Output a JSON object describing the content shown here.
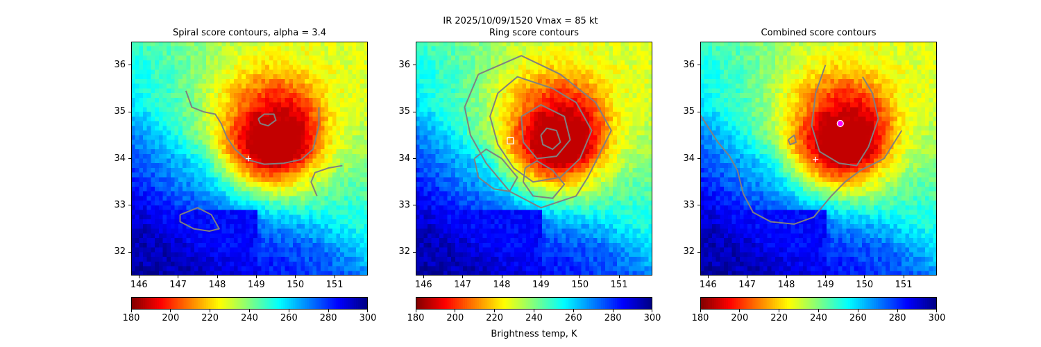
{
  "suptitle": "IR  2025/10/09/1520    Vmax = 85 kt",
  "colorbar_xlabel": "Brightness temp, K",
  "chart_data": [
    {
      "type": "heatmap",
      "title": "Spiral score contours, alpha =  3.4",
      "xlim": [
        145.8,
        151.85
      ],
      "ylim": [
        31.5,
        36.5
      ],
      "xticks": [
        146,
        147,
        148,
        149,
        150,
        151
      ],
      "yticks": [
        32,
        33,
        34,
        35,
        36
      ],
      "colormap": "jet_r",
      "clim": [
        180,
        300
      ],
      "colorbar_ticks": [
        180,
        200,
        220,
        240,
        260,
        280,
        300
      ],
      "storm_center_cold": [
        149.3,
        34.38
      ],
      "contour_color": "#808080",
      "contours": [
        [
          [
            147.2,
            35.45
          ],
          [
            147.35,
            35.1
          ],
          [
            147.65,
            35.0
          ],
          [
            147.95,
            34.95
          ],
          [
            148.1,
            34.75
          ],
          [
            148.25,
            34.45
          ],
          [
            148.45,
            34.2
          ],
          [
            148.75,
            33.98
          ],
          [
            149.2,
            33.88
          ],
          [
            149.7,
            33.9
          ],
          [
            150.15,
            33.98
          ],
          [
            150.45,
            34.2
          ],
          [
            150.6,
            34.7
          ],
          [
            150.6,
            35.1
          ]
        ],
        [
          [
            150.55,
            33.2
          ],
          [
            150.4,
            33.5
          ],
          [
            150.5,
            33.7
          ],
          [
            150.85,
            33.8
          ],
          [
            151.2,
            33.85
          ]
        ],
        [
          [
            149.05,
            34.85
          ],
          [
            149.2,
            34.95
          ],
          [
            149.45,
            34.95
          ],
          [
            149.5,
            34.82
          ],
          [
            149.3,
            34.7
          ],
          [
            149.1,
            34.75
          ],
          [
            149.05,
            34.85
          ]
        ],
        [
          [
            147.05,
            32.8
          ],
          [
            147.5,
            32.95
          ],
          [
            147.85,
            32.8
          ],
          [
            148.05,
            32.5
          ],
          [
            147.8,
            32.45
          ],
          [
            147.4,
            32.5
          ],
          [
            147.05,
            32.65
          ],
          [
            147.05,
            32.8
          ]
        ]
      ],
      "markers": [
        {
          "x": 148.8,
          "y": 34.0,
          "symbol": "+",
          "color": "#ffffff"
        }
      ]
    },
    {
      "type": "heatmap",
      "title": "Ring score contours",
      "xlim": [
        145.8,
        151.85
      ],
      "ylim": [
        31.5,
        36.5
      ],
      "xticks": [
        146,
        147,
        148,
        149,
        150,
        151
      ],
      "yticks": [
        32,
        33,
        34,
        35,
        36
      ],
      "colormap": "jet_r",
      "clim": [
        180,
        300
      ],
      "colorbar_ticks": [
        180,
        200,
        220,
        240,
        260,
        280,
        300
      ],
      "storm_center_cold": [
        149.3,
        34.38
      ],
      "contour_color": "#808080",
      "contours": [
        [
          [
            147.4,
            35.8
          ],
          [
            148.5,
            36.2
          ],
          [
            149.5,
            35.8
          ],
          [
            150.4,
            35.2
          ],
          [
            150.8,
            34.6
          ],
          [
            150.5,
            34.1
          ],
          [
            150.2,
            33.6
          ],
          [
            149.9,
            33.2
          ],
          [
            149.0,
            32.95
          ],
          [
            148.2,
            33.3
          ],
          [
            147.6,
            33.9
          ],
          [
            147.2,
            34.5
          ],
          [
            147.05,
            35.1
          ],
          [
            147.4,
            35.8
          ]
        ],
        [
          [
            147.9,
            35.4
          ],
          [
            148.4,
            35.75
          ],
          [
            149.3,
            35.5
          ],
          [
            149.9,
            35.2
          ],
          [
            150.3,
            34.6
          ],
          [
            150.0,
            34.0
          ],
          [
            149.5,
            33.6
          ],
          [
            148.8,
            33.5
          ],
          [
            148.3,
            33.8
          ],
          [
            147.9,
            34.3
          ],
          [
            147.7,
            34.9
          ],
          [
            147.9,
            35.4
          ]
        ],
        [
          [
            148.5,
            34.9
          ],
          [
            149.0,
            35.15
          ],
          [
            149.6,
            34.9
          ],
          [
            149.75,
            34.4
          ],
          [
            149.4,
            34.05
          ],
          [
            148.9,
            34.0
          ],
          [
            148.55,
            34.35
          ],
          [
            148.5,
            34.9
          ]
        ],
        [
          [
            149.0,
            34.5
          ],
          [
            149.15,
            34.65
          ],
          [
            149.4,
            34.6
          ],
          [
            149.5,
            34.35
          ],
          [
            149.3,
            34.2
          ],
          [
            149.05,
            34.3
          ],
          [
            149.0,
            34.5
          ]
        ],
        [
          [
            147.3,
            34.0
          ],
          [
            147.6,
            34.2
          ],
          [
            148.0,
            34.0
          ],
          [
            148.4,
            33.6
          ],
          [
            148.2,
            33.3
          ],
          [
            147.8,
            33.35
          ],
          [
            147.4,
            33.6
          ],
          [
            147.3,
            34.0
          ]
        ],
        [
          [
            148.6,
            33.8
          ],
          [
            148.9,
            33.95
          ],
          [
            149.3,
            33.75
          ],
          [
            149.6,
            33.45
          ],
          [
            149.3,
            33.15
          ],
          [
            148.8,
            33.2
          ],
          [
            148.55,
            33.5
          ],
          [
            148.6,
            33.8
          ]
        ]
      ],
      "markers": [
        {
          "x": 148.22,
          "y": 34.38,
          "symbol": "square",
          "color": "#ffffff"
        }
      ]
    },
    {
      "type": "heatmap",
      "title": "Combined score contours",
      "xlim": [
        145.8,
        151.85
      ],
      "ylim": [
        31.5,
        36.5
      ],
      "xticks": [
        146,
        147,
        148,
        149,
        150,
        151
      ],
      "yticks": [
        32,
        33,
        34,
        35,
        36
      ],
      "colormap": "jet_r",
      "clim": [
        180,
        300
      ],
      "colorbar_ticks": [
        180,
        200,
        220,
        240,
        260,
        280,
        300
      ],
      "storm_center_cold": [
        149.3,
        34.38
      ],
      "contour_color": "#808080",
      "contours": [
        [
          [
            149.0,
            36.0
          ],
          [
            148.75,
            35.4
          ],
          [
            148.65,
            34.7
          ],
          [
            148.85,
            34.15
          ],
          [
            149.35,
            33.9
          ],
          [
            149.8,
            33.85
          ],
          [
            150.1,
            34.25
          ],
          [
            150.35,
            34.85
          ],
          [
            150.2,
            35.4
          ],
          [
            149.95,
            35.75
          ]
        ],
        [
          [
            145.75,
            35.0
          ],
          [
            146.25,
            34.35
          ],
          [
            146.55,
            34.05
          ],
          [
            146.75,
            33.75
          ],
          [
            146.9,
            33.25
          ],
          [
            147.15,
            32.85
          ],
          [
            147.6,
            32.65
          ],
          [
            148.2,
            32.6
          ],
          [
            148.7,
            32.75
          ],
          [
            149.15,
            33.2
          ],
          [
            149.5,
            33.5
          ],
          [
            149.9,
            33.75
          ],
          [
            150.5,
            34.0
          ],
          [
            150.95,
            34.6
          ]
        ],
        [
          [
            148.05,
            34.4
          ],
          [
            148.2,
            34.5
          ],
          [
            148.25,
            34.35
          ],
          [
            148.1,
            34.3
          ],
          [
            148.05,
            34.4
          ]
        ]
      ],
      "markers": [
        {
          "x": 149.38,
          "y": 34.75,
          "symbol": "circle",
          "color": "#ff00ff"
        },
        {
          "x": 148.75,
          "y": 33.98,
          "symbol": "+",
          "color": "#ffffff"
        }
      ]
    }
  ]
}
